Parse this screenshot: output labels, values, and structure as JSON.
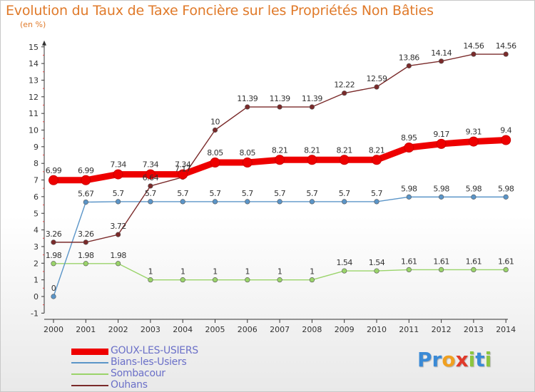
{
  "chart_data": {
    "type": "line",
    "title": "Evolution du Taux de Taxe Foncière sur les Propriétés Non Bâties",
    "subtitle": "(en %)",
    "xlabel": "",
    "ylabel": "",
    "x": [
      "2000",
      "2001",
      "2002",
      "2003",
      "2004",
      "2005",
      "2006",
      "2007",
      "2008",
      "2009",
      "2010",
      "2011",
      "2012",
      "2013",
      "2014"
    ],
    "ylim": [
      -1,
      15
    ],
    "yticks": [
      "-1",
      "0",
      "1",
      "2",
      "3",
      "4",
      "5",
      "6",
      "7",
      "8",
      "9",
      "10",
      "11",
      "12",
      "13",
      "14",
      "15"
    ],
    "grid": false,
    "legend_position": "bottom-left",
    "series": [
      {
        "name": "GOUX-LES-USIERS",
        "color": "#ee0000",
        "values": [
          6.99,
          6.99,
          7.34,
          7.34,
          7.34,
          8.05,
          8.05,
          8.21,
          8.21,
          8.21,
          8.21,
          8.95,
          9.17,
          9.31,
          9.4
        ],
        "labels": [
          "6.99",
          "6.99",
          "7.34",
          "7.34",
          "7.34",
          "8.05",
          "8.05",
          "8.21",
          "8.21",
          "8.21",
          "8.21",
          "8.95",
          "9.17",
          "9.31",
          "9.4"
        ]
      },
      {
        "name": "Bians-les-Usiers",
        "color": "#5b95c8",
        "values": [
          0,
          5.67,
          5.7,
          5.7,
          5.7,
          5.7,
          5.7,
          5.7,
          5.7,
          5.7,
          5.7,
          5.98,
          5.98,
          5.98,
          5.98
        ],
        "labels": [
          "0",
          "5.67",
          "5.7",
          "5.7",
          "5.7",
          "5.7",
          "5.7",
          "5.7",
          "5.7",
          "5.7",
          "5.7",
          "5.98",
          "5.98",
          "5.98",
          "5.98"
        ]
      },
      {
        "name": "Sombacour",
        "color": "#9ad46a",
        "values": [
          1.98,
          1.98,
          1.98,
          1,
          1,
          1,
          1,
          1,
          1,
          1.54,
          1.54,
          1.61,
          1.61,
          1.61,
          1.61
        ],
        "labels": [
          "1.98",
          "1.98",
          "1.98",
          "1",
          "1",
          "1",
          "1",
          "1",
          "1",
          "1.54",
          "1.54",
          "1.61",
          "1.61",
          "1.61",
          "1.61"
        ]
      },
      {
        "name": "Ouhans",
        "color": "#7a2a2a",
        "values": [
          3.26,
          3.26,
          3.72,
          6.64,
          7.17,
          10,
          11.39,
          11.39,
          11.39,
          12.22,
          12.59,
          13.86,
          14.14,
          14.56,
          14.56
        ],
        "labels": [
          "3.26",
          "3.26",
          "3.72",
          "6.64",
          "7.17",
          "10",
          "11.39",
          "11.39",
          "11.39",
          "12.22",
          "12.59",
          "13.86",
          "14.14",
          "14.56",
          "14.56"
        ]
      }
    ]
  },
  "logo": {
    "letters": [
      "P",
      "r",
      "o",
      "x",
      "i",
      "t",
      "i"
    ],
    "colors": [
      "#3a8ad6",
      "#3a8ad6",
      "#f0a020",
      "#e03a2a",
      "#8cc63f",
      "#3a8ad6",
      "#8cc63f"
    ]
  }
}
